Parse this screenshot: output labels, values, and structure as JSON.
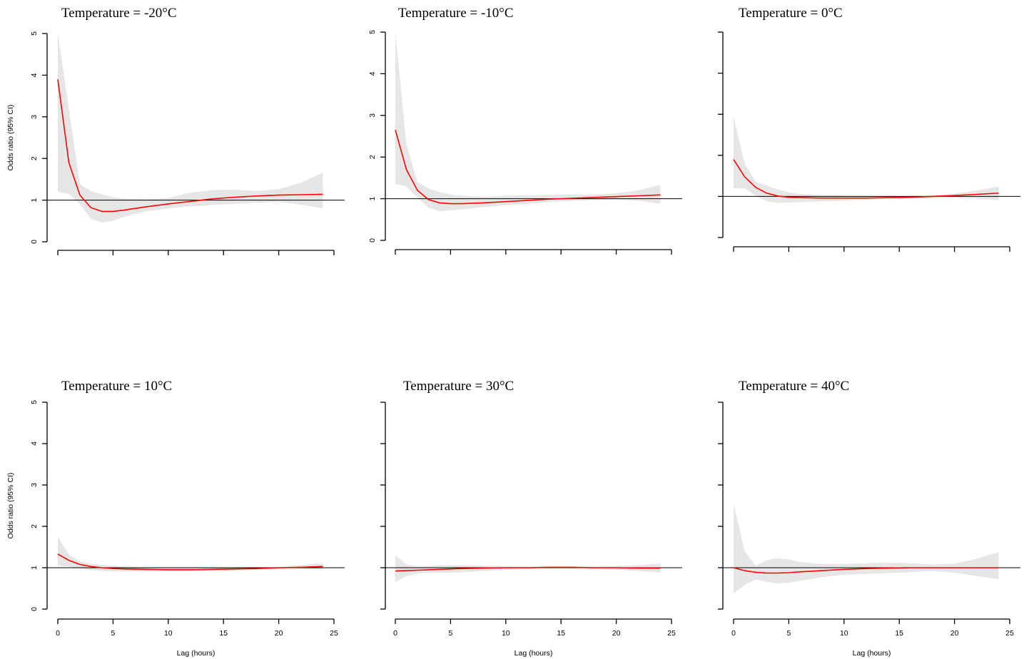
{
  "chart_data": [
    {
      "type": "line",
      "title": "Temperature = -20°C",
      "xlabel": "",
      "ylabel": "Odds ratio (95% CI)",
      "xlim": [
        0,
        25
      ],
      "ylim": [
        0,
        5
      ],
      "xticks": [],
      "yticks": [
        0,
        1,
        2,
        3,
        4,
        5
      ],
      "reference_line": 1,
      "x": [
        0,
        1,
        2,
        3,
        4,
        5,
        6,
        8,
        10,
        12,
        14,
        16,
        18,
        20,
        22,
        24
      ],
      "series": [
        {
          "role": "estimate",
          "color": "#ff0000",
          "values": [
            3.9,
            1.9,
            1.12,
            0.82,
            0.73,
            0.73,
            0.76,
            0.84,
            0.91,
            0.97,
            1.03,
            1.07,
            1.1,
            1.12,
            1.13,
            1.14
          ]
        },
        {
          "role": "ci_upper",
          "color": "#e6e6e6",
          "values": [
            5.3,
            3.2,
            1.38,
            1.22,
            1.14,
            1.07,
            1.04,
            1.02,
            1.05,
            1.18,
            1.24,
            1.25,
            1.22,
            1.26,
            1.42,
            1.66
          ]
        },
        {
          "role": "ci_lower",
          "color": "#e6e6e6",
          "values": [
            1.2,
            1.15,
            0.9,
            0.55,
            0.46,
            0.5,
            0.6,
            0.73,
            0.8,
            0.85,
            0.88,
            0.91,
            0.94,
            0.96,
            0.89,
            0.8
          ]
        }
      ]
    },
    {
      "type": "line",
      "title": "Temperature = -10°C",
      "xlabel": "",
      "ylabel": "",
      "xlim": [
        0,
        25
      ],
      "ylim": [
        0,
        5
      ],
      "xticks": [],
      "yticks": [
        0,
        1,
        2,
        3,
        4,
        5
      ],
      "reference_line": 1,
      "x": [
        0,
        1,
        2,
        3,
        4,
        5,
        6,
        8,
        10,
        12,
        14,
        16,
        18,
        20,
        22,
        24
      ],
      "series": [
        {
          "role": "estimate",
          "color": "#ff0000",
          "values": [
            2.65,
            1.7,
            1.2,
            0.98,
            0.9,
            0.88,
            0.88,
            0.9,
            0.93,
            0.96,
            0.99,
            1.01,
            1.03,
            1.05,
            1.07,
            1.09
          ]
        },
        {
          "role": "ci_upper",
          "color": "#e6e6e6",
          "values": [
            5.2,
            2.3,
            1.4,
            1.25,
            1.16,
            1.1,
            1.07,
            1.05,
            1.07,
            1.08,
            1.09,
            1.1,
            1.1,
            1.13,
            1.2,
            1.33
          ]
        },
        {
          "role": "ci_lower",
          "color": "#e6e6e6",
          "values": [
            1.35,
            1.3,
            1.02,
            0.78,
            0.7,
            0.72,
            0.74,
            0.8,
            0.84,
            0.88,
            0.92,
            0.95,
            0.97,
            0.98,
            0.95,
            0.88
          ]
        }
      ]
    },
    {
      "type": "line",
      "title": "Temperature = 0°C",
      "xlabel": "",
      "ylabel": "",
      "xlim": [
        0,
        25
      ],
      "ylim": [
        0,
        5
      ],
      "xticks": [],
      "yticks": [],
      "reference_line": 1,
      "x": [
        0,
        1,
        2,
        3,
        4,
        5,
        6,
        8,
        10,
        12,
        14,
        16,
        18,
        20,
        22,
        24
      ],
      "series": [
        {
          "role": "estimate",
          "color": "#ff0000",
          "values": [
            1.9,
            1.48,
            1.22,
            1.08,
            1.01,
            0.98,
            0.97,
            0.96,
            0.96,
            0.96,
            0.97,
            0.98,
            1.0,
            1.02,
            1.05,
            1.08
          ]
        },
        {
          "role": "ci_upper",
          "color": "#e6e6e6",
          "values": [
            2.95,
            1.8,
            1.36,
            1.26,
            1.17,
            1.1,
            1.06,
            1.03,
            1.02,
            1.01,
            1.01,
            1.01,
            1.03,
            1.07,
            1.14,
            1.24
          ]
        },
        {
          "role": "ci_lower",
          "color": "#e6e6e6",
          "values": [
            1.2,
            1.2,
            1.02,
            0.88,
            0.84,
            0.85,
            0.86,
            0.88,
            0.9,
            0.92,
            0.93,
            0.95,
            0.96,
            0.97,
            0.95,
            0.91
          ]
        }
      ]
    },
    {
      "type": "line",
      "title": "Temperature = 10°C",
      "xlabel": "Lag (hours)",
      "ylabel": "Odds ratio (95% CI)",
      "xlim": [
        0,
        25
      ],
      "ylim": [
        0,
        5
      ],
      "xticks": [
        0,
        5,
        10,
        15,
        20,
        25
      ],
      "yticks": [
        0,
        1,
        2,
        3,
        4,
        5
      ],
      "reference_line": 1,
      "x": [
        0,
        1,
        2,
        3,
        4,
        5,
        6,
        8,
        10,
        12,
        14,
        16,
        18,
        20,
        22,
        24
      ],
      "series": [
        {
          "role": "estimate",
          "color": "#ff0000",
          "values": [
            1.33,
            1.18,
            1.08,
            1.03,
            1.0,
            0.98,
            0.97,
            0.96,
            0.95,
            0.95,
            0.96,
            0.97,
            0.98,
            1.0,
            1.01,
            1.03
          ]
        },
        {
          "role": "ci_upper",
          "color": "#e6e6e6",
          "values": [
            1.75,
            1.32,
            1.15,
            1.1,
            1.07,
            1.05,
            1.03,
            1.01,
            1.0,
            1.0,
            1.0,
            1.01,
            1.01,
            1.02,
            1.06,
            1.12
          ]
        },
        {
          "role": "ci_lower",
          "color": "#e6e6e6",
          "values": [
            1.05,
            1.02,
            0.98,
            0.94,
            0.92,
            0.91,
            0.91,
            0.91,
            0.91,
            0.91,
            0.92,
            0.93,
            0.95,
            0.97,
            0.97,
            0.96
          ]
        }
      ]
    },
    {
      "type": "line",
      "title": "Temperature = 30°C",
      "xlabel": "Lag (hours)",
      "ylabel": "",
      "xlim": [
        0,
        25
      ],
      "ylim": [
        0,
        5
      ],
      "xticks": [
        0,
        5,
        10,
        15,
        20,
        25
      ],
      "yticks": [],
      "reference_line": 1,
      "x": [
        0,
        1,
        2,
        3,
        4,
        5,
        6,
        8,
        10,
        12,
        14,
        16,
        18,
        20,
        22,
        24
      ],
      "series": [
        {
          "role": "estimate",
          "color": "#ff0000",
          "values": [
            0.92,
            0.93,
            0.94,
            0.95,
            0.96,
            0.97,
            0.98,
            0.99,
            1.0,
            1.0,
            1.01,
            1.01,
            1.0,
            1.0,
            0.99,
            0.99
          ]
        },
        {
          "role": "ci_upper",
          "color": "#e6e6e6",
          "values": [
            1.3,
            1.08,
            1.02,
            1.04,
            1.06,
            1.06,
            1.06,
            1.05,
            1.04,
            1.03,
            1.03,
            1.03,
            1.03,
            1.04,
            1.06,
            1.1
          ]
        },
        {
          "role": "ci_lower",
          "color": "#e6e6e6",
          "values": [
            0.65,
            0.8,
            0.86,
            0.88,
            0.88,
            0.88,
            0.89,
            0.92,
            0.95,
            0.97,
            0.98,
            0.98,
            0.97,
            0.95,
            0.92,
            0.88
          ]
        }
      ]
    },
    {
      "type": "line",
      "title": "Temperature = 40°C",
      "xlabel": "Lag (hours)",
      "ylabel": "",
      "xlim": [
        0,
        25
      ],
      "ylim": [
        0,
        5
      ],
      "xticks": [
        0,
        5,
        10,
        15,
        20,
        25
      ],
      "yticks": [],
      "reference_line": 1,
      "x": [
        0,
        1,
        2,
        3,
        4,
        5,
        6,
        8,
        10,
        12,
        14,
        16,
        18,
        20,
        22,
        24
      ],
      "series": [
        {
          "role": "estimate",
          "color": "#ff0000",
          "values": [
            1.0,
            0.93,
            0.89,
            0.87,
            0.87,
            0.88,
            0.9,
            0.93,
            0.96,
            0.98,
            0.99,
            1.0,
            1.0,
            1.0,
            1.0,
            1.0
          ]
        },
        {
          "role": "ci_upper",
          "color": "#e6e6e6",
          "values": [
            2.55,
            1.4,
            1.05,
            1.18,
            1.23,
            1.2,
            1.14,
            1.09,
            1.09,
            1.11,
            1.12,
            1.11,
            1.08,
            1.1,
            1.22,
            1.38
          ]
        },
        {
          "role": "ci_lower",
          "color": "#e6e6e6",
          "values": [
            0.38,
            0.58,
            0.72,
            0.66,
            0.62,
            0.64,
            0.68,
            0.77,
            0.83,
            0.85,
            0.87,
            0.89,
            0.92,
            0.88,
            0.8,
            0.72
          ]
        }
      ]
    }
  ]
}
